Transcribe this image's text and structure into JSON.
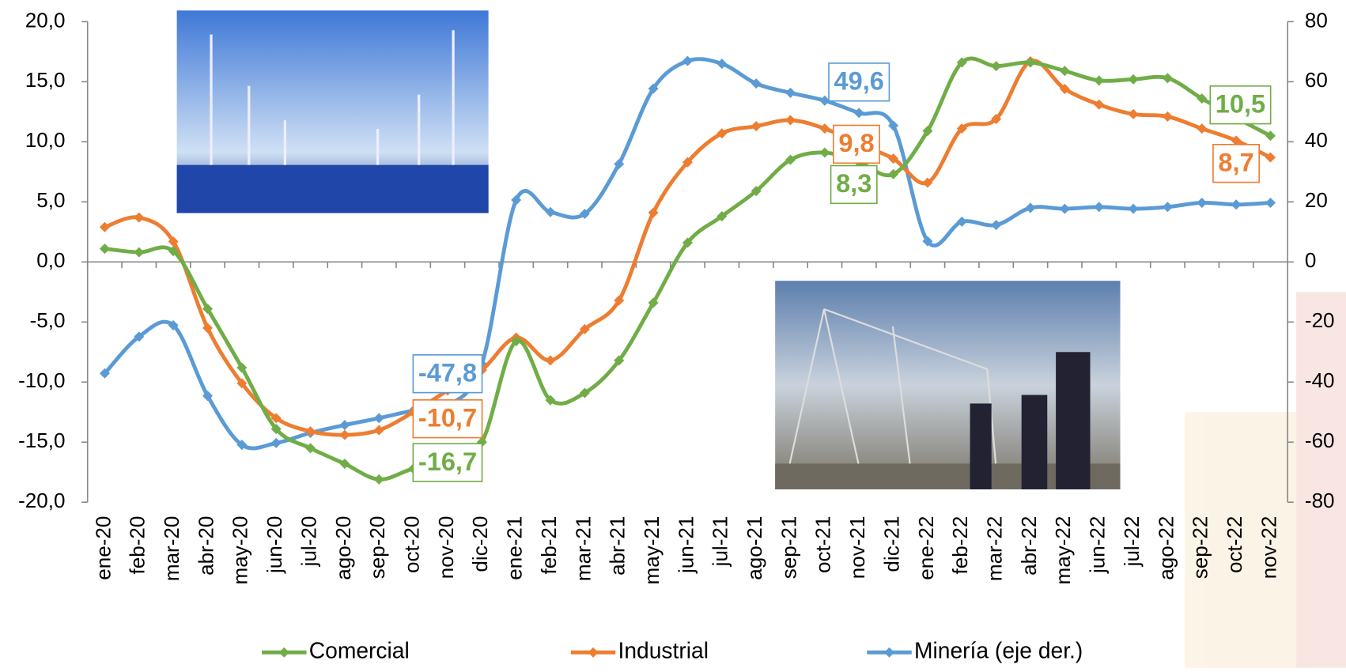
{
  "chart_data": {
    "type": "line",
    "categories": [
      "ene-20",
      "feb-20",
      "mar-20",
      "abr-20",
      "may-20",
      "jun-20",
      "jul-20",
      "ago-20",
      "sep-20",
      "oct-20",
      "nov-20",
      "dic-20",
      "ene-21",
      "feb-21",
      "mar-21",
      "abr-21",
      "may-21",
      "jun-21",
      "jul-21",
      "ago-21",
      "sep-21",
      "oct-21",
      "nov-21",
      "dic-21",
      "ene-22",
      "feb-22",
      "mar-22",
      "abr-22",
      "may-22",
      "jun-22",
      "jul-22",
      "ago-22",
      "sep-22",
      "oct-22",
      "nov-22"
    ],
    "series": [
      {
        "name": "Comercial",
        "color": "#70ad47",
        "values": [
          1.1,
          0.8,
          0.9,
          -3.9,
          -8.8,
          -13.9,
          -15.5,
          -16.8,
          -18.1,
          -17.2,
          -16.7,
          -15.0,
          -6.6,
          -11.5,
          -10.9,
          -8.2,
          -3.4,
          1.6,
          3.8,
          5.9,
          8.5,
          9.1,
          8.3,
          7.3,
          10.9,
          16.6,
          16.3,
          16.6,
          15.9,
          15.1,
          15.2,
          15.3,
          13.6,
          12.0,
          10.5
        ],
        "value_labels": [
          null,
          null,
          null,
          null,
          null,
          null,
          null,
          null,
          null,
          null,
          "-16,7",
          null,
          null,
          null,
          null,
          null,
          null,
          null,
          null,
          null,
          null,
          null,
          "8,3",
          null,
          null,
          null,
          null,
          null,
          null,
          null,
          null,
          null,
          null,
          null,
          "10,5"
        ]
      },
      {
        "name": "Industrial",
        "color": "#ed7d31",
        "values": [
          2.9,
          3.7,
          1.7,
          -5.5,
          -10.1,
          -13.0,
          -14.1,
          -14.4,
          -14.0,
          -12.5,
          -10.7,
          -9.0,
          -6.3,
          -8.2,
          -5.6,
          -3.2,
          4.1,
          8.3,
          10.7,
          11.3,
          11.8,
          11.1,
          9.8,
          8.6,
          6.6,
          11.1,
          11.9,
          16.7,
          14.4,
          13.1,
          12.3,
          12.1,
          11.1,
          10.1,
          8.7
        ],
        "value_labels": [
          null,
          null,
          null,
          null,
          null,
          null,
          null,
          null,
          null,
          null,
          "-10,7",
          null,
          null,
          null,
          null,
          null,
          null,
          null,
          null,
          null,
          null,
          null,
          "9,8",
          null,
          null,
          null,
          null,
          null,
          null,
          null,
          null,
          null,
          null,
          null,
          "8,7"
        ]
      },
      {
        "name": "Minería (eje der.)",
        "color": "#5b9bd5",
        "axis": "y2",
        "values": [
          -37.1,
          -24.9,
          -21.1,
          -44.6,
          -60.9,
          -60.3,
          -56.9,
          -54.3,
          -52.0,
          -49.5,
          -47.8,
          -34.0,
          20.6,
          16.6,
          16.0,
          32.6,
          57.7,
          66.9,
          66.0,
          59.4,
          56.3,
          53.7,
          49.6,
          45.4,
          6.9,
          13.4,
          12.3,
          18.0,
          17.7,
          18.3,
          17.7,
          18.3,
          19.7,
          19.1,
          19.7
        ],
        "value_labels": [
          null,
          null,
          null,
          null,
          null,
          null,
          null,
          null,
          null,
          null,
          "-47,8",
          null,
          null,
          null,
          null,
          null,
          null,
          null,
          null,
          null,
          null,
          null,
          "49,6",
          null,
          null,
          null,
          null,
          null,
          null,
          null,
          null,
          null,
          null,
          null,
          null
        ]
      }
    ],
    "ylim": [
      -20,
      20
    ],
    "yticks": [
      {
        "value": -20,
        "label": "-20,0"
      },
      {
        "value": -15,
        "label": "-15,0"
      },
      {
        "value": -10,
        "label": "-10,0"
      },
      {
        "value": -5,
        "label": "-5,0"
      },
      {
        "value": 0,
        "label": "0,0"
      },
      {
        "value": 5,
        "label": "5,0"
      },
      {
        "value": 10,
        "label": "10,0"
      },
      {
        "value": 15,
        "label": "15,0"
      },
      {
        "value": 20,
        "label": "20,0"
      }
    ],
    "y2lim": [
      -80,
      80
    ],
    "y2ticks": [
      -80,
      -60,
      -40,
      -20,
      0,
      20,
      40,
      60,
      80
    ],
    "legend": "bottom",
    "grid": false
  }
}
